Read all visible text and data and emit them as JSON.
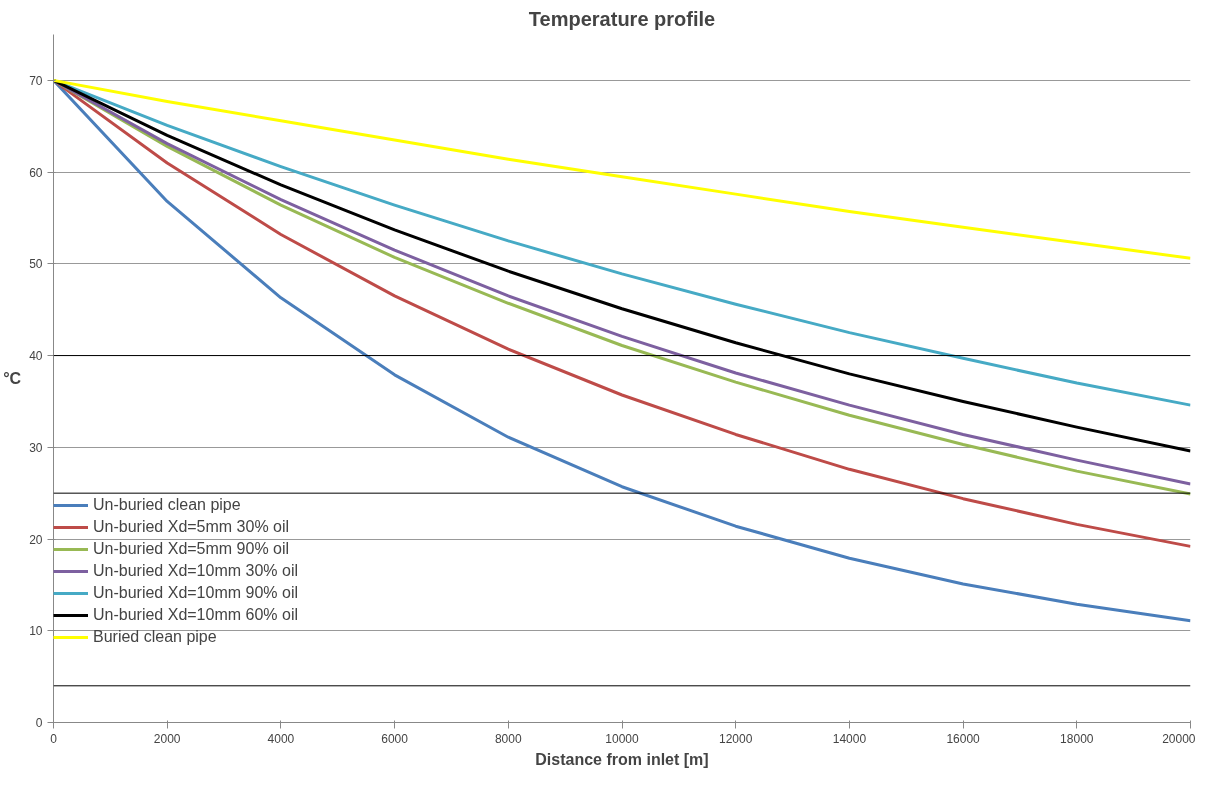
{
  "chart_data": {
    "type": "line",
    "title": "Temperature profile",
    "xlabel": "Distance from inlet [m]",
    "ylabel": "°C",
    "x": [
      0,
      2000,
      4000,
      6000,
      8000,
      10000,
      12000,
      14000,
      16000,
      18000,
      20000
    ],
    "series": [
      {
        "name": "Un-buried clean pipe",
        "color": "#4a7ebb",
        "values": [
          70,
          56.8,
          46.3,
          37.9,
          31.1,
          25.7,
          21.4,
          17.9,
          15.1,
          12.9,
          11.1
        ]
      },
      {
        "name": "Un-buried Xd=5mm 30% oil",
        "color": "#be4b48",
        "values": [
          70,
          61.0,
          53.2,
          46.5,
          40.7,
          35.7,
          31.4,
          27.6,
          24.4,
          21.6,
          19.2
        ]
      },
      {
        "name": "Un-buried Xd=5mm 90% oil",
        "color": "#98b954",
        "values": [
          70,
          62.8,
          56.4,
          50.7,
          45.7,
          41.1,
          37.1,
          33.5,
          30.3,
          27.4,
          24.9
        ]
      },
      {
        "name": "Un-buried Xd=10mm 30% oil",
        "color": "#7d60a0",
        "values": [
          70,
          63.1,
          57.0,
          51.5,
          46.5,
          42.1,
          38.1,
          34.6,
          31.4,
          28.6,
          26.0
        ]
      },
      {
        "name": "Un-buried Xd=10mm 90% oil",
        "color": "#46aac5",
        "values": [
          70,
          65.1,
          60.6,
          56.4,
          52.5,
          48.9,
          45.6,
          42.5,
          39.7,
          37.0,
          34.6
        ]
      },
      {
        "name": "Un-buried Xd=10mm 60% oil",
        "color": "#000000",
        "values": [
          70,
          64.0,
          58.6,
          53.7,
          49.2,
          45.1,
          41.4,
          38.0,
          35.0,
          32.2,
          29.6
        ]
      },
      {
        "name": "Buried clean pipe",
        "color": "#ffff00",
        "values": [
          70,
          67.7,
          65.6,
          63.5,
          61.4,
          59.5,
          57.6,
          55.7,
          54.0,
          52.3,
          50.6
        ]
      }
    ],
    "xlim": [
      0,
      20000
    ],
    "xticks": [
      0,
      2000,
      4000,
      6000,
      8000,
      10000,
      12000,
      14000,
      16000,
      18000,
      20000
    ],
    "ylim": [
      0,
      75
    ],
    "yticks": [
      0,
      10,
      20,
      30,
      40,
      50,
      60,
      70
    ],
    "ref_lines": [
      {
        "axis": "y",
        "value": 40,
        "color": "#000000"
      },
      {
        "axis": "y",
        "value": 25,
        "color": "#000000"
      },
      {
        "axis": "y",
        "value": 4,
        "color": "#000000"
      }
    ],
    "grid": "y",
    "legend": "left",
    "marker": "none",
    "line_style": "solid"
  }
}
